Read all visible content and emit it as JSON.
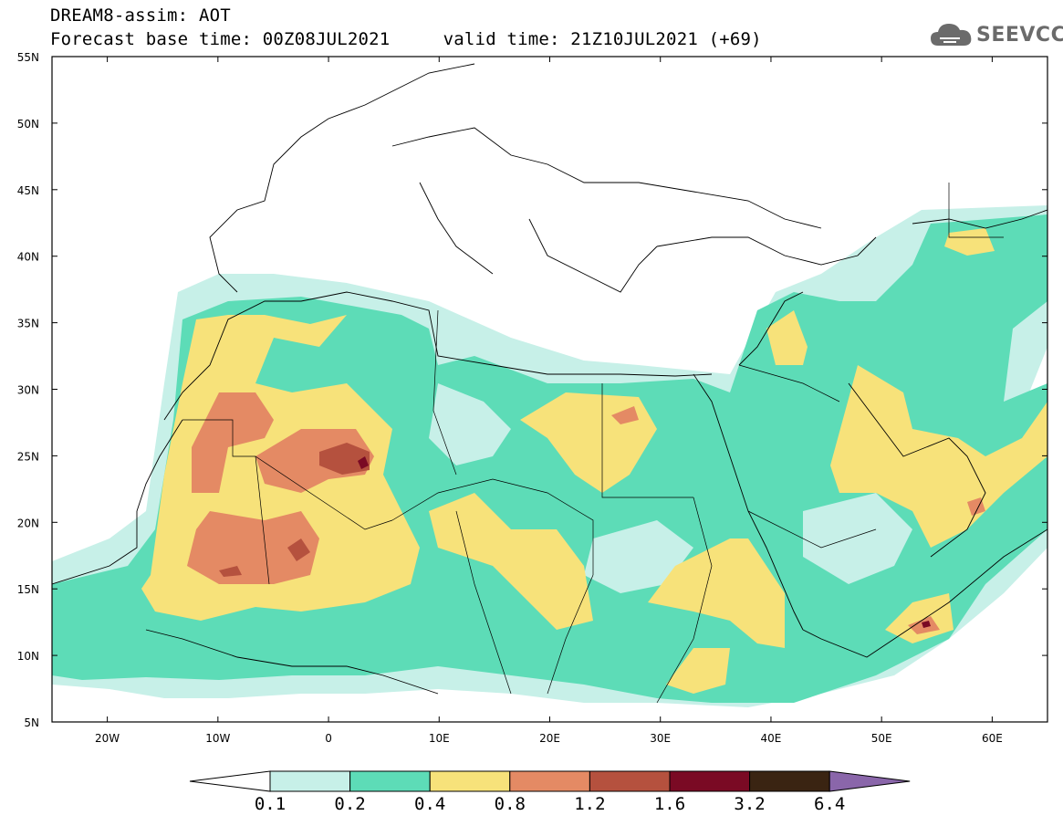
{
  "header": {
    "title_line1": "DREAM8-assim: AOT",
    "title_line2": "Forecast base time: 00Z08JUL2021     valid time: 21Z10JUL2021 (+69)"
  },
  "logo": {
    "text": "SEEVCCC",
    "icon": "cloud-icon"
  },
  "map": {
    "lat_labels": [
      "55N",
      "50N",
      "45N",
      "40N",
      "35N",
      "30N",
      "25N",
      "20N",
      "15N",
      "10N",
      "5N"
    ],
    "lon_labels": [
      "20W",
      "10W",
      "0",
      "10E",
      "20E",
      "30E",
      "40E",
      "50E",
      "60E"
    ],
    "extent": {
      "lon": [
        -25,
        65
      ],
      "lat": [
        5,
        55
      ]
    }
  },
  "legend": {
    "labels": [
      "0.1",
      "0.2",
      "0.4",
      "0.8",
      "1.2",
      "1.6",
      "3.2",
      "6.4"
    ],
    "colors": [
      "#ffffff",
      "#c7f0e8",
      "#5ddcb7",
      "#f7e27a",
      "#e48a64",
      "#b5513e",
      "#7a0a24",
      "#3a2412",
      "#8a66aa"
    ]
  },
  "colors": {
    "c01": "#c7f0e8",
    "c02": "#5ddcb7",
    "c04": "#f7e27a",
    "c08": "#e48a64",
    "c12": "#b5513e",
    "c16": "#7a0a24"
  }
}
